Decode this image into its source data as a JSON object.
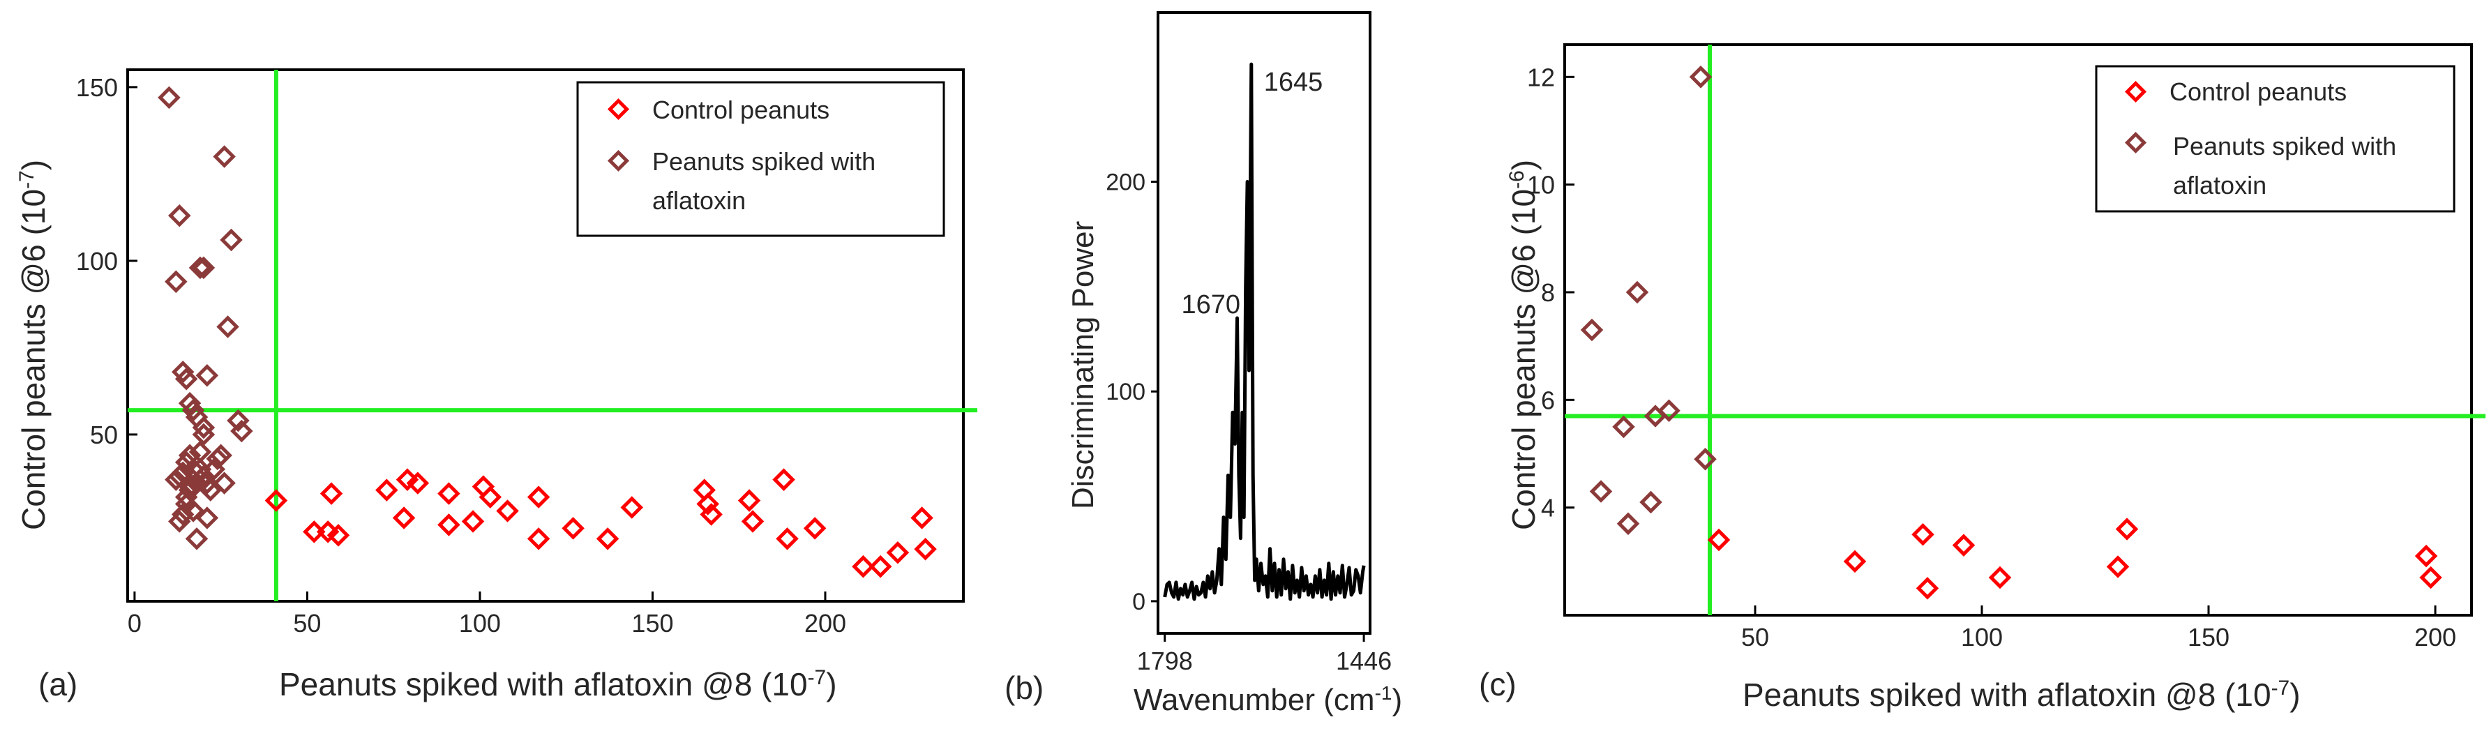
{
  "colors": {
    "control": "#ff0000",
    "spiked": "#8b3a3a",
    "threshold": "#22ee22",
    "frame": "#000000",
    "text": "#262626"
  },
  "chart_data": [
    {
      "type": "scatter",
      "panel_label": "(a)",
      "xlabel": "Peanuts spiked with aflatoxin @8 (10⁻⁷)",
      "ylabel": "Control peanuts  @6 (10⁻⁷)",
      "xlim": [
        -2,
        240
      ],
      "ylim": [
        2,
        155
      ],
      "xticks": [
        0,
        50,
        100,
        150,
        200
      ],
      "xticklabels": [
        "0",
        "50",
        "100",
        "150",
        "200"
      ],
      "yticks": [
        50,
        100,
        150
      ],
      "yticklabels": [
        "50",
        "100",
        "150"
      ],
      "thresholds": {
        "x": 41,
        "y": 57
      },
      "legend": [
        "Control peanuts",
        "Peanuts spiked with aflatoxin"
      ],
      "series": [
        {
          "name": "Control peanuts",
          "x": [
            41,
            52,
            56,
            57,
            59,
            73,
            78,
            79,
            82,
            91,
            91,
            98,
            101,
            103,
            108,
            117,
            117,
            127,
            137,
            144,
            165,
            166,
            167,
            178,
            179,
            188,
            189,
            197,
            211,
            216,
            221,
            228,
            229
          ],
          "y": [
            31,
            22,
            22,
            33,
            21,
            34,
            26,
            37,
            36,
            33,
            24,
            25,
            35,
            32,
            28,
            32,
            20,
            23,
            20,
            29,
            34,
            30,
            27,
            31,
            25,
            37,
            20,
            23,
            12,
            12,
            16,
            26,
            17
          ]
        },
        {
          "name": "Peanuts spiked with aflatoxin",
          "x": [
            10,
            12,
            13,
            14,
            15,
            16,
            17,
            18,
            19,
            20,
            21,
            20,
            26,
            28,
            27,
            13,
            15,
            16,
            17,
            19,
            20,
            30,
            31,
            12,
            13,
            14,
            15,
            16,
            17,
            18,
            19,
            20,
            21,
            22,
            23,
            24,
            25,
            26,
            15,
            18,
            21,
            16,
            14,
            17,
            19
          ],
          "y": [
            147,
            94,
            113,
            68,
            66,
            59,
            57,
            55,
            98,
            98,
            67,
            52,
            130,
            106,
            81,
            25,
            30,
            35,
            40,
            45,
            50,
            54,
            51,
            37,
            38,
            39,
            42,
            44,
            35,
            36,
            37,
            38,
            36,
            34,
            40,
            43,
            44,
            36,
            32,
            20,
            26,
            34,
            27,
            28,
            40
          ]
        }
      ]
    },
    {
      "type": "line",
      "panel_label": "(b)",
      "xlabel": "Wavenumber (cm⁻¹)",
      "ylabel": "Discriminating Power",
      "xlim": [
        1810,
        1435
      ],
      "ylim": [
        -10,
        270
      ],
      "xticks": [
        1798,
        1446
      ],
      "xticklabels": [
        "1798",
        "1446"
      ],
      "yticks": [
        0,
        100,
        200
      ],
      "yticklabels": [
        "0",
        "100",
        "200"
      ],
      "annotations": [
        {
          "text": "1645",
          "x": 1645,
          "y": 256
        },
        {
          "text": "1670",
          "x": 1670,
          "y": 134
        }
      ],
      "series": [
        {
          "name": "Discriminating power",
          "x": [
            1798,
            1794,
            1790,
            1786,
            1782,
            1778,
            1774,
            1770,
            1766,
            1762,
            1758,
            1754,
            1750,
            1746,
            1742,
            1738,
            1734,
            1730,
            1726,
            1722,
            1718,
            1714,
            1710,
            1706,
            1702,
            1698,
            1694,
            1690,
            1686,
            1682,
            1678,
            1674,
            1670,
            1667,
            1664,
            1661,
            1658,
            1655,
            1652,
            1649,
            1645,
            1642,
            1639,
            1636,
            1632,
            1628,
            1624,
            1620,
            1616,
            1612,
            1608,
            1604,
            1600,
            1596,
            1592,
            1588,
            1584,
            1580,
            1576,
            1572,
            1568,
            1564,
            1560,
            1556,
            1552,
            1548,
            1544,
            1540,
            1536,
            1532,
            1528,
            1524,
            1520,
            1516,
            1512,
            1508,
            1504,
            1500,
            1496,
            1492,
            1488,
            1484,
            1480,
            1476,
            1472,
            1468,
            1464,
            1460,
            1456,
            1452,
            1448,
            1446
          ],
          "y": [
            2,
            8,
            9,
            4,
            2,
            9,
            1,
            6,
            3,
            8,
            2,
            5,
            9,
            1,
            7,
            3,
            4,
            9,
            2,
            12,
            6,
            14,
            4,
            10,
            25,
            8,
            40,
            20,
            60,
            40,
            90,
            75,
            135,
            60,
            30,
            90,
            40,
            150,
            200,
            110,
            256,
            60,
            10,
            20,
            5,
            18,
            8,
            12,
            2,
            25,
            5,
            18,
            2,
            15,
            3,
            20,
            6,
            14,
            1,
            17,
            4,
            10,
            2,
            16,
            5,
            12,
            3,
            8,
            2,
            12,
            4,
            15,
            2,
            10,
            3,
            18,
            1,
            14,
            3,
            12,
            4,
            17,
            2,
            8,
            16,
            3,
            5,
            15,
            12,
            4,
            14,
            17
          ]
        }
      ]
    },
    {
      "type": "scatter",
      "panel_label": "(c)",
      "xlabel": "Peanuts spiked with aflatoxin @8 (10⁻⁷)",
      "ylabel": "Control peanuts  @6 (10⁻⁶)",
      "xlim": [
        8,
        208
      ],
      "ylim": [
        2.0,
        12.6
      ],
      "xticks": [
        50,
        100,
        150,
        200
      ],
      "xticklabels": [
        "50",
        "100",
        "150",
        "200"
      ],
      "yticks": [
        4,
        6,
        8,
        10,
        12
      ],
      "yticklabels": [
        "4",
        "6",
        "8",
        "10",
        "12"
      ],
      "thresholds": {
        "x": 40,
        "y": 5.7
      },
      "legend": [
        "Control peanuts",
        "Peanuts spiked with aflatoxin"
      ],
      "series": [
        {
          "name": "Control peanuts",
          "x": [
            42,
            72,
            87,
            88,
            96,
            104,
            130,
            132,
            198,
            199
          ],
          "y": [
            3.4,
            3.0,
            3.5,
            2.5,
            3.3,
            2.7,
            2.9,
            3.6,
            3.1,
            2.7
          ]
        },
        {
          "name": "Peanuts spiked with aflatoxin",
          "x": [
            38,
            14,
            24,
            16,
            21,
            28,
            31,
            39,
            27,
            22
          ],
          "y": [
            12.0,
            7.3,
            8.0,
            4.3,
            5.5,
            5.7,
            5.8,
            4.9,
            4.1,
            3.7
          ]
        }
      ]
    }
  ]
}
